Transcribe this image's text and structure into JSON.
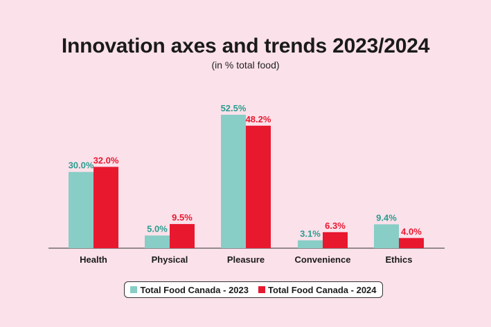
{
  "chart_data": {
    "type": "bar",
    "title": "Innovation axes and trends 2023/2024",
    "subtitle": "(in % total food)",
    "categories": [
      "Health",
      "Physical",
      "Pleasure",
      "Convenience",
      "Ethics"
    ],
    "series": [
      {
        "name": "Total Food Canada - 2023",
        "values": [
          30.0,
          5.0,
          52.5,
          3.1,
          9.4
        ],
        "labels": [
          "30.0%",
          "5.0%",
          "52.5%",
          "3.1%",
          "9.4%"
        ],
        "color": "#88cdc6",
        "label_color": "#2a9d8f"
      },
      {
        "name": "Total Food Canada - 2024",
        "values": [
          32.0,
          9.5,
          48.2,
          6.3,
          4.0
        ],
        "labels": [
          "32.0%",
          "9.5%",
          "48.2%",
          "6.3%",
          "4.0%"
        ],
        "color": "#e8182f",
        "label_color": "#e8182f"
      }
    ],
    "ylim": [
      0,
      55
    ],
    "grid": false,
    "legend": "bottom-center"
  }
}
